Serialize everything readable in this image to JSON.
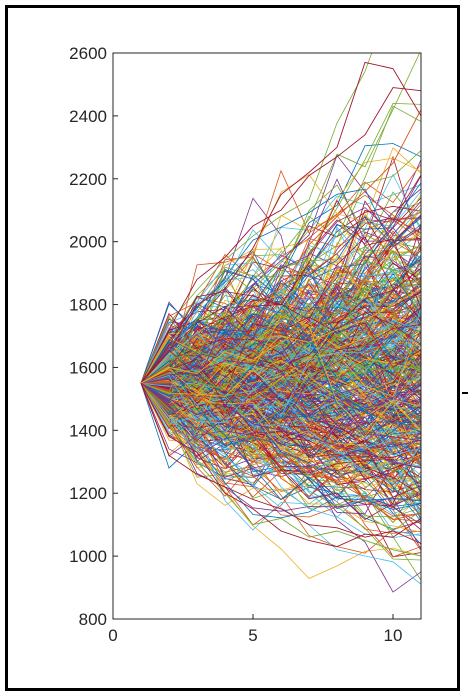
{
  "chart_data": {
    "type": "line",
    "title": "",
    "xlabel": "",
    "ylabel": "",
    "xlim": [
      0,
      11
    ],
    "ylim": [
      800,
      2600
    ],
    "x_ticks": [
      0,
      5,
      10
    ],
    "y_ticks": [
      800,
      1000,
      1200,
      1400,
      1600,
      1800,
      2000,
      2200,
      2400,
      2600
    ],
    "x_tick_labels": [
      "0",
      "5",
      "10"
    ],
    "y_tick_labels": [
      "800",
      "1000",
      "1200",
      "1400",
      "1600",
      "1800",
      "2000",
      "2200",
      "2400",
      "2600"
    ],
    "grid": false,
    "legend": "none",
    "start": {
      "x": 1,
      "y": 1550
    },
    "series_count": 600,
    "series_colors": [
      "#0072BD",
      "#D95319",
      "#EDB120",
      "#7E2F8E",
      "#77AC30",
      "#4DBEEE",
      "#A2142F"
    ],
    "series": [
      {
        "x": [
          1,
          2,
          3,
          4,
          5,
          6,
          7,
          8,
          9,
          10,
          11
        ],
        "values": [
          1550,
          1720,
          1880,
          1950,
          2050,
          2100,
          2210,
          2270,
          2340,
          2490,
          2480
        ]
      },
      {
        "x": [
          1,
          2,
          3,
          4,
          5,
          6,
          7,
          8,
          9,
          10,
          11
        ],
        "values": [
          1550,
          1650,
          1800,
          1850,
          1980,
          2150,
          2220,
          2300,
          2570,
          2550,
          2400
        ]
      },
      {
        "x": [
          1,
          2,
          3,
          4,
          5,
          6,
          7,
          8,
          9,
          10,
          11
        ],
        "values": [
          1550,
          1610,
          1650,
          1740,
          1800,
          1850,
          1990,
          2080,
          2160,
          2250,
          2420
        ]
      },
      {
        "x": [
          1,
          2,
          3,
          4,
          5,
          6,
          7,
          8,
          9,
          10,
          11
        ],
        "values": [
          1550,
          1420,
          1300,
          1200,
          1100,
          1120,
          1060,
          1080,
          1050,
          1020,
          1000
        ]
      },
      {
        "x": [
          1,
          2,
          3,
          4,
          5,
          6,
          7,
          8,
          9,
          10,
          11
        ],
        "values": [
          1550,
          1380,
          1330,
          1200,
          1150,
          1080,
          1050,
          1030,
          1070,
          1060,
          1120
        ]
      },
      {
        "x": [
          1,
          2,
          3,
          4,
          5,
          6,
          7,
          8,
          9,
          10,
          11
        ],
        "values": [
          1550,
          1320,
          1260,
          1220,
          1180,
          1150,
          1100,
          1090,
          1060,
          1080,
          1040
        ]
      },
      {
        "x": [
          1,
          2,
          3,
          4,
          5,
          6,
          7,
          8,
          9,
          10,
          11
        ],
        "values": [
          1550,
          1600,
          1580,
          1650,
          1620,
          1700,
          1680,
          1720,
          1750,
          1800,
          1850
        ]
      },
      {
        "x": [
          1,
          2,
          3,
          4,
          5,
          6,
          7,
          8,
          9,
          10,
          11
        ],
        "values": [
          1550,
          1500,
          1450,
          1480,
          1420,
          1400,
          1380,
          1350,
          1330,
          1300,
          1280
        ]
      }
    ]
  }
}
